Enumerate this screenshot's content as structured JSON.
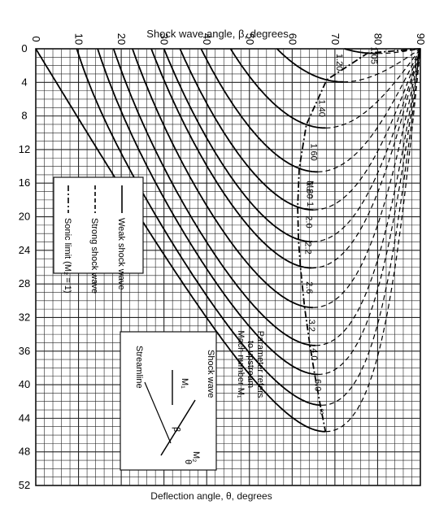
{
  "chart_data": {
    "type": "line",
    "xlabel": "Shock wave angle, β, degrees",
    "ylabel": "Deflection angle, θ, degrees",
    "xlim": [
      0,
      90
    ],
    "ylim": [
      0,
      52
    ],
    "x_ticks": [
      "0",
      "10",
      "20",
      "30",
      "40",
      "50",
      "60",
      "70",
      "80",
      "90"
    ],
    "y_ticks": [
      "0",
      "4",
      "8",
      "12",
      "16",
      "20",
      "24",
      "28",
      "32",
      "36",
      "40",
      "44",
      "48",
      "52"
    ],
    "grid": true,
    "legend": [
      {
        "label": "Weak shock wave",
        "style": "solid"
      },
      {
        "label": "Strong shock wave",
        "style": "dashed"
      },
      {
        "label": "Sonic limit (M₂ = 1)",
        "style": "dash-dot"
      }
    ],
    "series": [
      {
        "name": "1.05",
        "mach": 1.05
      },
      {
        "name": "1.20",
        "mach": 1.2
      },
      {
        "name": "1.40",
        "mach": 1.4
      },
      {
        "name": "1.60",
        "mach": 1.6
      },
      {
        "name": "1.80",
        "mach": 1.8
      },
      {
        "name": "2.0",
        "mach": 2.0
      },
      {
        "name": "2.2",
        "mach": 2.2
      },
      {
        "name": "2.6",
        "mach": 2.6
      },
      {
        "name": "3.2",
        "mach": 3.2
      },
      {
        "name": "4.0",
        "mach": 4.0
      },
      {
        "name": "6.0",
        "mach": 6.0
      },
      {
        "name": "∞",
        "mach": 1000
      }
    ],
    "annotations": {
      "sonic_label": "M₂ = 1",
      "parameter_note": [
        "Parameter refers",
        "to upstream",
        "Mach number M₁"
      ],
      "inset": {
        "shock_wave": "Shock wave",
        "streamline": "Streamline",
        "m1": "M₁",
        "m2": "M₂",
        "beta": "β",
        "theta": "θ"
      }
    }
  }
}
